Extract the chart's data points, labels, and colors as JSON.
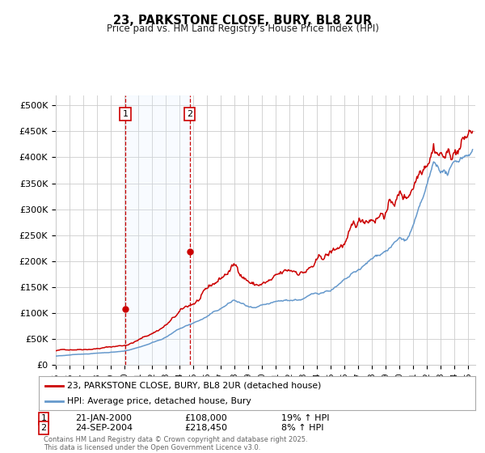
{
  "title": "23, PARKSTONE CLOSE, BURY, BL8 2UR",
  "subtitle": "Price paid vs. HM Land Registry's House Price Index (HPI)",
  "ylabel_ticks": [
    "£0",
    "£50K",
    "£100K",
    "£150K",
    "£200K",
    "£250K",
    "£300K",
    "£350K",
    "£400K",
    "£450K",
    "£500K"
  ],
  "ytick_values": [
    0,
    50000,
    100000,
    150000,
    200000,
    250000,
    300000,
    350000,
    400000,
    450000,
    500000
  ],
  "ylim": [
    0,
    520000
  ],
  "xlim_start": 1995.0,
  "xlim_end": 2025.5,
  "sale1_date": 2000.06,
  "sale1_price": 108000,
  "sale1_label": "1",
  "sale2_date": 2004.73,
  "sale2_price": 218450,
  "sale2_label": "2",
  "legend_line1": "23, PARKSTONE CLOSE, BURY, BL8 2UR (detached house)",
  "legend_line2": "HPI: Average price, detached house, Bury",
  "footer": "Contains HM Land Registry data © Crown copyright and database right 2025.\nThis data is licensed under the Open Government Licence v3.0.",
  "line_color_red": "#cc0000",
  "line_color_blue": "#6699cc",
  "background_color": "#ffffff",
  "grid_color": "#cccccc",
  "shade_color": "#ddeeff",
  "marker_box_color": "#cc0000",
  "dashed_line_color": "#cc0000",
  "sale1_date_str": "21-JAN-2000",
  "sale1_price_str": "£108,000",
  "sale1_hpi_str": "19% ↑ HPI",
  "sale2_date_str": "24-SEP-2004",
  "sale2_price_str": "£218,450",
  "sale2_hpi_str": "8% ↑ HPI"
}
